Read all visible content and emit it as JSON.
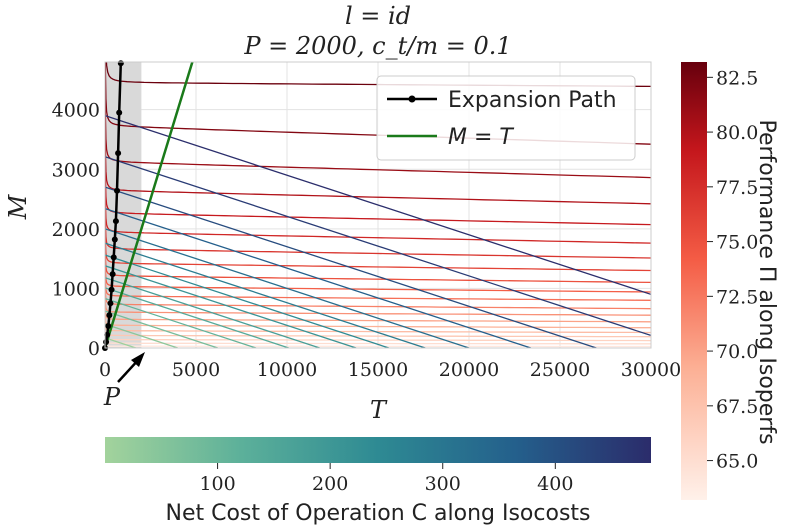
{
  "chart_data": {
    "type": "line",
    "title_line1": "l = id",
    "title_line2": "P = 2000, c_t/m = 0.1",
    "xlabel": "T",
    "ylabel": "M",
    "xlim": [
      0,
      30000
    ],
    "ylim": [
      0,
      4800
    ],
    "x_ticks": [
      0,
      5000,
      10000,
      15000,
      20000,
      25000,
      30000
    ],
    "y_ticks": [
      0,
      1000,
      2000,
      3000,
      4000
    ],
    "grid": true,
    "legend": {
      "placement": "top-right",
      "entries": [
        {
          "label": "Expansion Path",
          "color": "#000000",
          "marker": "dot"
        },
        {
          "label": "M = T",
          "color": "#1a7a1a",
          "marker": "none"
        }
      ]
    },
    "shaded_region": {
      "x_range": [
        0,
        2000
      ],
      "color": "#d9d9d9"
    },
    "annotation": {
      "text": "P",
      "points_to_x": 2000
    },
    "expansion_path": {
      "x": [
        0,
        60,
        120,
        180,
        240,
        300,
        360,
        420,
        480,
        540,
        600,
        660,
        720,
        780,
        870
      ],
      "y": [
        0,
        100,
        220,
        370,
        550,
        750,
        980,
        1240,
        1520,
        1820,
        2130,
        2640,
        3270,
        3950,
        4780
      ]
    },
    "identity_line": {
      "x": [
        0,
        4800
      ],
      "y": [
        0,
        4800
      ]
    },
    "isocosts": {
      "cost_values": [
        10,
        40,
        75,
        110,
        140,
        175,
        210,
        240,
        280,
        320,
        365,
        410,
        450,
        480
      ],
      "y_intercepts": [
        170,
        400,
        620,
        830,
        1010,
        1180,
        1380,
        1560,
        1760,
        2000,
        2340,
        2700,
        3210,
        3900
      ],
      "x_intercepts": [
        1700,
        4000,
        6200,
        8300,
        10100,
        11800,
        13800,
        15600,
        17600,
        20000,
        23400,
        27000,
        32100,
        39000
      ]
    },
    "isoperfs": {
      "perf_values": [
        64,
        65,
        66,
        67,
        68,
        69,
        70,
        71,
        72,
        73,
        74,
        75,
        76,
        77,
        78,
        79,
        80,
        81,
        82,
        83
      ],
      "asymptote_y": [
        30,
        80,
        140,
        210,
        290,
        380,
        480,
        600,
        730,
        870,
        1030,
        1210,
        1420,
        1660,
        1940,
        2260,
        2640,
        3120,
        3720,
        4450
      ],
      "end_y": [
        25,
        70,
        125,
        190,
        260,
        340,
        440,
        550,
        660,
        800,
        940,
        1100,
        1300,
        1510,
        1760,
        2070,
        2420,
        2860,
        3420,
        4390
      ]
    },
    "colorbar_perf": {
      "label": "Performance Π along Isoperfs",
      "ticks": [
        65.0,
        67.5,
        70.0,
        72.5,
        75.0,
        77.5,
        80.0,
        82.5
      ],
      "range": [
        63.2,
        83.2
      ]
    },
    "colorbar_cost": {
      "label": "Net Cost of Operation C along Isocosts",
      "ticks": [
        100,
        200,
        300,
        400
      ],
      "range": [
        0,
        485
      ]
    }
  }
}
